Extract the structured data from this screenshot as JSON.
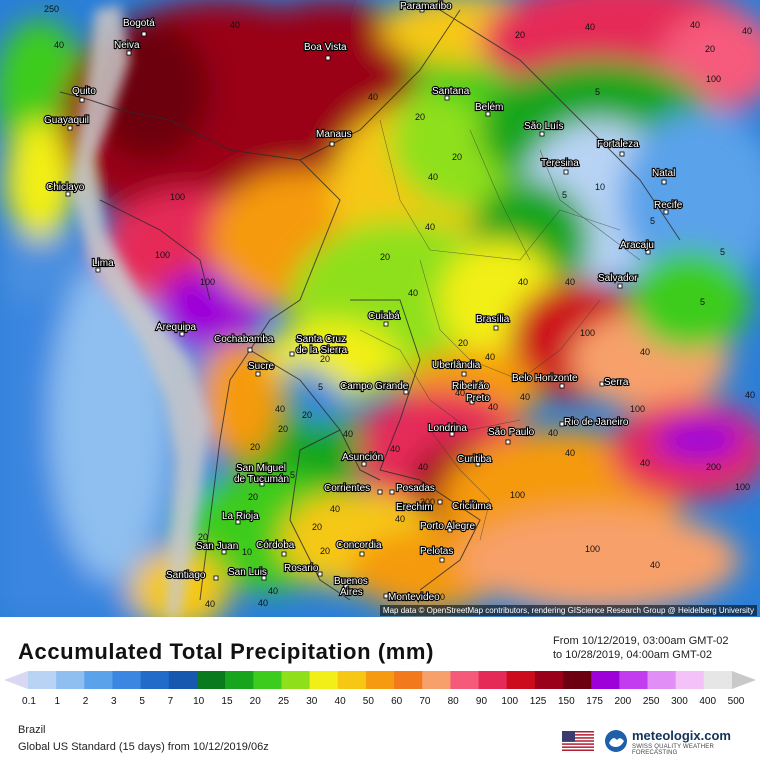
{
  "title": "Accumulated Total Precipitation (mm)",
  "date_range": {
    "from": "From 10/12/2019, 03:00am GMT-02",
    "to": "to 10/28/2019, 04:00am GMT-02"
  },
  "attribution": "Map data © OpenStreetMap contributors, rendering GIScience Research Group @ Heidelberg University",
  "region": "Brazil",
  "model_run": "Global US Standard (15 days) from 10/12/2019/06z",
  "brand": {
    "name": "meteologix.com",
    "tagline": "SWISS QUALITY WEATHER FORECASTING"
  },
  "legend": {
    "ticks": [
      "0.1",
      "1",
      "2",
      "3",
      "5",
      "7",
      "10",
      "15",
      "20",
      "25",
      "30",
      "40",
      "50",
      "60",
      "70",
      "80",
      "90",
      "100",
      "125",
      "150",
      "175",
      "200",
      "250",
      "300",
      "400",
      "500"
    ],
    "colors": [
      "#d8d8f2",
      "#b8d3f4",
      "#8fbff0",
      "#5aa2ea",
      "#3b86e0",
      "#226bc9",
      "#1658b0",
      "#0a7a1f",
      "#17a51d",
      "#3ccc1e",
      "#8fe01a",
      "#f2ef18",
      "#f6c814",
      "#f59a11",
      "#f27a1c",
      "#f8a06b",
      "#f65a7b",
      "#e52a58",
      "#cc0b1d",
      "#9a0019",
      "#6d0010",
      "#9d00d8",
      "#c33cf0",
      "#e28ef7",
      "#f4c2f9",
      "#e6e6e6",
      "#c9c9c9"
    ]
  },
  "cities": [
    {
      "name": "Paramaribo"
    },
    {
      "name": "Bogotá"
    },
    {
      "name": "Neiva"
    },
    {
      "name": "Boa Vista"
    },
    {
      "name": "Quito"
    },
    {
      "name": "Guayaquil"
    },
    {
      "name": "Santana"
    },
    {
      "name": "Belém"
    },
    {
      "name": "São Luís"
    },
    {
      "name": "Manaus"
    },
    {
      "name": "Fortaleza"
    },
    {
      "name": "Teresina"
    },
    {
      "name": "Natal"
    },
    {
      "name": "Chiclayo"
    },
    {
      "name": "Recife"
    },
    {
      "name": "Aracaju"
    },
    {
      "name": "Lima"
    },
    {
      "name": "Salvador"
    },
    {
      "name": "Cuiabá"
    },
    {
      "name": "Brasília"
    },
    {
      "name": "Arequipa"
    },
    {
      "name": "Cochabamba"
    },
    {
      "name": "Santa Cruz"
    },
    {
      "name": "de la Sierra"
    },
    {
      "name": "Uberlândia"
    },
    {
      "name": "Sucre"
    },
    {
      "name": "Belo Horizonte"
    },
    {
      "name": "Serra"
    },
    {
      "name": "Campo Grande"
    },
    {
      "name": "Ribeirão"
    },
    {
      "name": "Preto"
    },
    {
      "name": "Rio de Janeiro"
    },
    {
      "name": "Londrina"
    },
    {
      "name": "São Paulo"
    },
    {
      "name": "Asunción"
    },
    {
      "name": "Curitiba"
    },
    {
      "name": "San Miguel"
    },
    {
      "name": "de Tucumán"
    },
    {
      "name": "Corrientes"
    },
    {
      "name": "Posadas"
    },
    {
      "name": "Erechim"
    },
    {
      "name": "Criciúma"
    },
    {
      "name": "La Rioja"
    },
    {
      "name": "Porto Alegre"
    },
    {
      "name": "San Juan"
    },
    {
      "name": "Córdoba"
    },
    {
      "name": "Concordia"
    },
    {
      "name": "Pelotas"
    },
    {
      "name": "Rosario"
    },
    {
      "name": "Santiago"
    },
    {
      "name": "San Luis"
    },
    {
      "name": "Buenos"
    },
    {
      "name": "Aires"
    },
    {
      "name": "Montevideo"
    }
  ],
  "value_labels": [
    "250",
    "40",
    "40",
    "20",
    "40",
    "40",
    "20",
    "5",
    "40",
    "20",
    "100",
    "40",
    "100",
    "20",
    "10",
    "5",
    "5",
    "5",
    "40",
    "20",
    "40",
    "100",
    "100",
    "40",
    "40",
    "40",
    "5",
    "20",
    "100",
    "20",
    "5",
    "40",
    "40",
    "40",
    "40",
    "20",
    "40",
    "20",
    "40",
    "200",
    "40",
    "40",
    "20",
    "100",
    "40",
    "40",
    "20",
    "100",
    "40",
    "40",
    "200",
    "40",
    "20",
    "40",
    "10",
    "100",
    "40",
    "5",
    "40",
    "20",
    "40",
    "100",
    "40",
    "20",
    "40",
    "40",
    "40"
  ]
}
